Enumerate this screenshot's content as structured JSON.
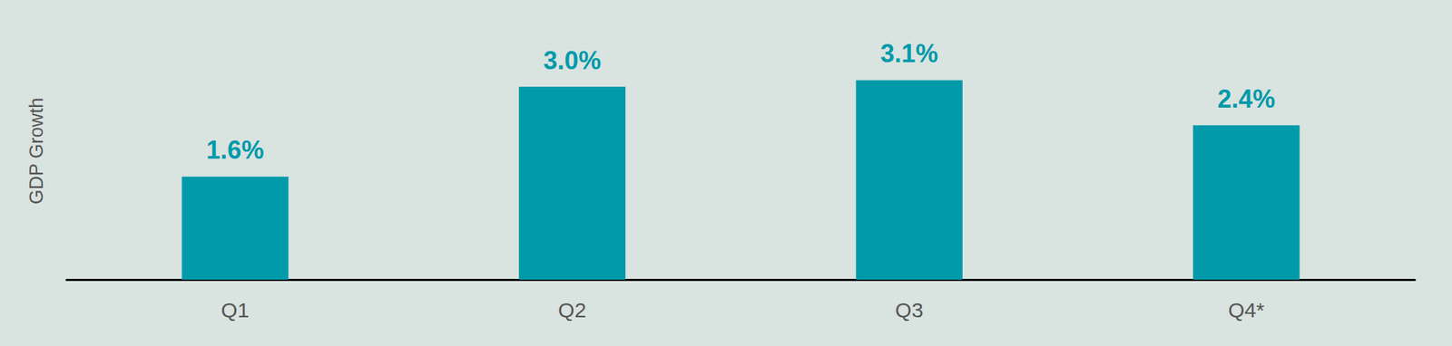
{
  "chart_data": {
    "type": "bar",
    "y_label": "GDP Growth",
    "categories": [
      "Q1",
      "Q2",
      "Q3",
      "Q4*"
    ],
    "values": [
      1.6,
      3.0,
      3.1,
      2.4
    ],
    "value_labels": [
      "1.6%",
      "3.0%",
      "3.1%",
      "2.4%"
    ],
    "color": "#009aaa",
    "ylim": [
      0,
      4
    ],
    "grid": false,
    "data_labels": true,
    "tick_labels": "x"
  }
}
